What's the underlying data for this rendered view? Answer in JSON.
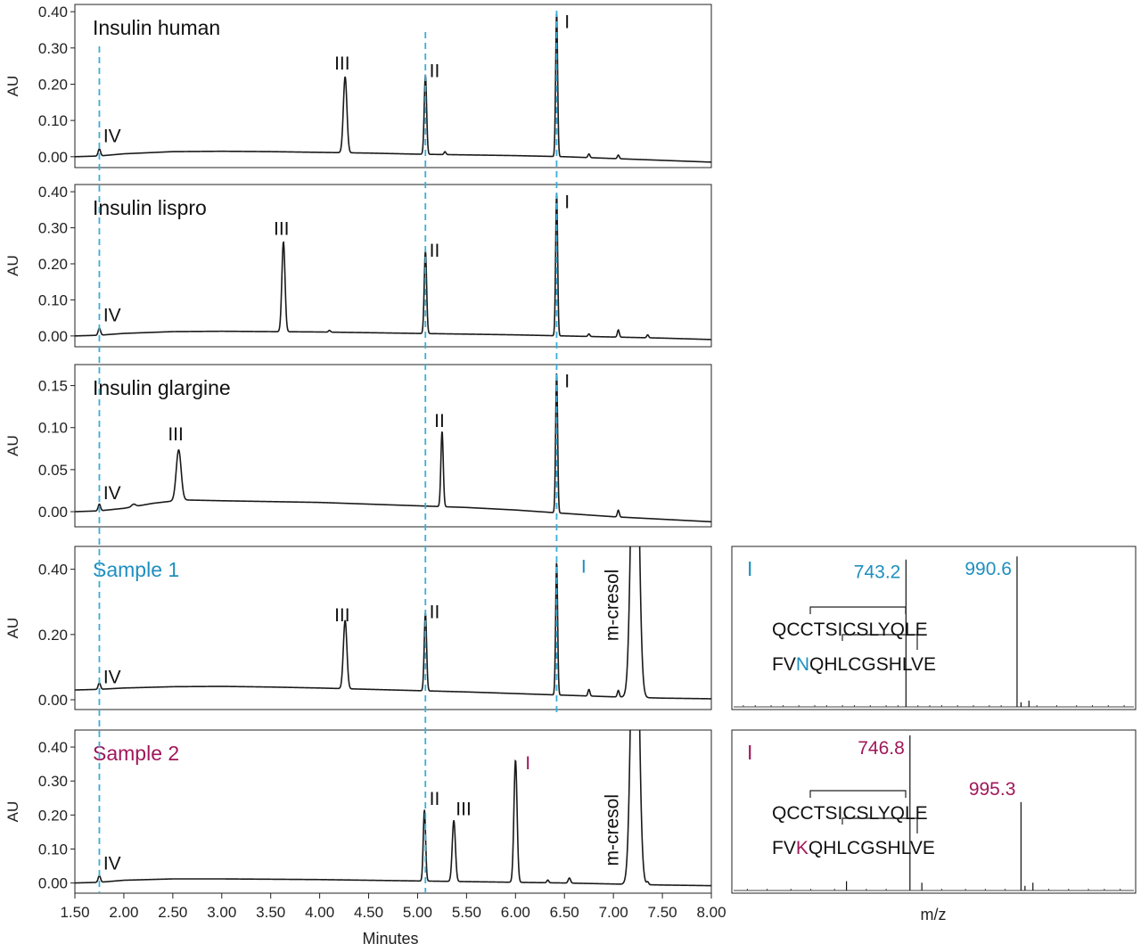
{
  "colors": {
    "sample1": "#1f8fbf",
    "sample2": "#a0185a",
    "guide": "#3aaed8",
    "trace": "#1a1a1a"
  },
  "x_axis": {
    "label": "Minutes",
    "range": [
      1.5,
      8.0
    ],
    "ticks": [
      "1.50",
      "2.00",
      "2.50",
      "3.00",
      "3.50",
      "4.00",
      "4.50",
      "5.00",
      "5.50",
      "6.00",
      "6.50",
      "7.00",
      "7.50",
      "8.00"
    ],
    "guides": [
      1.75,
      5.08,
      6.42
    ]
  },
  "ms_axis": {
    "label": "m/z"
  },
  "chart_data": [
    {
      "type": "line",
      "title": "Insulin human",
      "ylabel": "AU",
      "ylim": [
        -0.03,
        0.42
      ],
      "yticks": [
        "0.00",
        "0.10",
        "0.20",
        "0.30",
        "0.40"
      ],
      "yticks_num": [
        0,
        0.1,
        0.2,
        0.3,
        0.4
      ],
      "baseline": [
        [
          1.5,
          0.0
        ],
        [
          1.75,
          0.002
        ],
        [
          2.0,
          0.008
        ],
        [
          2.5,
          0.014
        ],
        [
          3.0,
          0.015
        ],
        [
          3.5,
          0.014
        ],
        [
          4.0,
          0.012
        ],
        [
          4.5,
          0.01
        ],
        [
          5.0,
          0.007
        ],
        [
          5.5,
          0.005
        ],
        [
          6.0,
          0.003
        ],
        [
          6.5,
          0.0
        ],
        [
          7.0,
          -0.005
        ],
        [
          7.5,
          -0.01
        ],
        [
          8.0,
          -0.015
        ]
      ],
      "peaks": [
        {
          "x": 1.75,
          "h": 0.02,
          "w": 0.012
        },
        {
          "x": 4.26,
          "h": 0.21,
          "w": 0.018
        },
        {
          "x": 5.08,
          "h": 0.22,
          "w": 0.012
        },
        {
          "x": 5.28,
          "h": 0.008,
          "w": 0.01
        },
        {
          "x": 6.42,
          "h": 0.4,
          "w": 0.01
        },
        {
          "x": 6.75,
          "h": 0.01,
          "w": 0.01
        },
        {
          "x": 7.05,
          "h": 0.01,
          "w": 0.01
        }
      ],
      "peak_labels": [
        {
          "text": "IV",
          "x": 1.79,
          "y": 0.04
        },
        {
          "text": "III",
          "x": 4.15,
          "y": 0.24
        },
        {
          "text": "II",
          "x": 5.12,
          "y": 0.22
        },
        {
          "text": "I",
          "x": 6.5,
          "y": 0.355
        }
      ]
    },
    {
      "type": "line",
      "title": "Insulin lispro",
      "ylabel": "AU",
      "ylim": [
        -0.03,
        0.42
      ],
      "yticks": [
        "0.00",
        "0.10",
        "0.20",
        "0.30",
        "0.40"
      ],
      "yticks_num": [
        0,
        0.1,
        0.2,
        0.3,
        0.4
      ],
      "baseline": [
        [
          1.5,
          0.0
        ],
        [
          1.75,
          0.002
        ],
        [
          2.0,
          0.007
        ],
        [
          2.5,
          0.012
        ],
        [
          3.0,
          0.013
        ],
        [
          3.5,
          0.012
        ],
        [
          4.0,
          0.011
        ],
        [
          4.5,
          0.009
        ],
        [
          5.0,
          0.007
        ],
        [
          5.5,
          0.005
        ],
        [
          6.0,
          0.003
        ],
        [
          6.5,
          0.0
        ],
        [
          7.0,
          -0.003
        ],
        [
          7.5,
          -0.006
        ],
        [
          8.0,
          -0.01
        ]
      ],
      "peaks": [
        {
          "x": 1.75,
          "h": 0.02,
          "w": 0.012
        },
        {
          "x": 3.63,
          "h": 0.25,
          "w": 0.016
        },
        {
          "x": 4.1,
          "h": 0.005,
          "w": 0.01
        },
        {
          "x": 5.08,
          "h": 0.23,
          "w": 0.012
        },
        {
          "x": 6.42,
          "h": 0.4,
          "w": 0.01
        },
        {
          "x": 6.75,
          "h": 0.007,
          "w": 0.01
        },
        {
          "x": 7.05,
          "h": 0.02,
          "w": 0.01
        },
        {
          "x": 7.35,
          "h": 0.008,
          "w": 0.01
        }
      ],
      "peak_labels": [
        {
          "text": "IV",
          "x": 1.79,
          "y": 0.04
        },
        {
          "text": "III",
          "x": 3.53,
          "y": 0.28
        },
        {
          "text": "II",
          "x": 5.12,
          "y": 0.22
        },
        {
          "text": "I",
          "x": 6.5,
          "y": 0.355
        }
      ]
    },
    {
      "type": "line",
      "title": "Insulin glargine",
      "ylabel": "AU",
      "ylim": [
        -0.018,
        0.175
      ],
      "yticks": [
        "0.00",
        "0.05",
        "0.10",
        "0.15"
      ],
      "yticks_num": [
        0,
        0.05,
        0.1,
        0.15
      ],
      "baseline": [
        [
          1.5,
          0.0
        ],
        [
          1.75,
          0.001
        ],
        [
          2.0,
          0.004
        ],
        [
          2.3,
          0.01
        ],
        [
          2.6,
          0.014
        ],
        [
          3.0,
          0.013
        ],
        [
          3.5,
          0.012
        ],
        [
          4.0,
          0.011
        ],
        [
          4.5,
          0.009
        ],
        [
          5.0,
          0.007
        ],
        [
          5.5,
          0.005
        ],
        [
          6.0,
          0.002
        ],
        [
          6.5,
          -0.002
        ],
        [
          7.0,
          -0.006
        ],
        [
          7.5,
          -0.009
        ],
        [
          8.0,
          -0.012
        ]
      ],
      "peaks": [
        {
          "x": 1.75,
          "h": 0.008,
          "w": 0.012
        },
        {
          "x": 2.1,
          "h": 0.003,
          "w": 0.02
        },
        {
          "x": 2.56,
          "h": 0.06,
          "w": 0.025
        },
        {
          "x": 5.25,
          "h": 0.09,
          "w": 0.012
        },
        {
          "x": 6.42,
          "h": 0.168,
          "w": 0.01
        },
        {
          "x": 7.05,
          "h": 0.008,
          "w": 0.01
        }
      ],
      "peak_labels": [
        {
          "text": "IV",
          "x": 1.79,
          "y": 0.015
        },
        {
          "text": "III",
          "x": 2.45,
          "y": 0.085
        },
        {
          "text": "II",
          "x": 5.17,
          "y": 0.101
        },
        {
          "text": "I",
          "x": 6.5,
          "y": 0.148
        }
      ]
    },
    {
      "type": "line",
      "title": "Sample 1",
      "title_color": "#1f8fbf",
      "ylabel": "AU",
      "ylim": [
        -0.03,
        0.47
      ],
      "yticks": [
        "0.00",
        "0.20",
        "0.40"
      ],
      "yticks_num": [
        0,
        0.2,
        0.4
      ],
      "baseline": [
        [
          1.5,
          0.03
        ],
        [
          1.75,
          0.032
        ],
        [
          2.0,
          0.036
        ],
        [
          2.5,
          0.04
        ],
        [
          3.0,
          0.041
        ],
        [
          3.5,
          0.039
        ],
        [
          4.0,
          0.036
        ],
        [
          4.5,
          0.032
        ],
        [
          5.0,
          0.028
        ],
        [
          5.5,
          0.024
        ],
        [
          6.0,
          0.019
        ],
        [
          6.5,
          0.014
        ],
        [
          7.0,
          0.009
        ],
        [
          7.5,
          0.005
        ],
        [
          8.0,
          0.003
        ]
      ],
      "peaks": [
        {
          "x": 1.75,
          "h": 0.02,
          "w": 0.012
        },
        {
          "x": 4.26,
          "h": 0.21,
          "w": 0.018
        },
        {
          "x": 5.08,
          "h": 0.24,
          "w": 0.012
        },
        {
          "x": 6.42,
          "h": 0.41,
          "w": 0.01
        },
        {
          "x": 6.75,
          "h": 0.02,
          "w": 0.01
        },
        {
          "x": 7.05,
          "h": 0.02,
          "w": 0.01
        },
        {
          "x": 7.22,
          "h": 1.2,
          "w": 0.035
        }
      ],
      "peak_labels": [
        {
          "text": "IV",
          "x": 1.79,
          "y": 0.05
        },
        {
          "text": "III",
          "x": 4.15,
          "y": 0.24
        },
        {
          "text": "II",
          "x": 5.12,
          "y": 0.25
        },
        {
          "text": "I",
          "x": 6.67,
          "y": 0.39,
          "color": "#1f8fbf"
        },
        {
          "text": "m-cresol",
          "x": 7.05,
          "y": 0.18,
          "rotate": true
        }
      ]
    },
    {
      "type": "line",
      "title": "Sample 2",
      "title_color": "#a0185a",
      "ylabel": "AU",
      "ylim": [
        -0.03,
        0.45
      ],
      "yticks": [
        "0.00",
        "0.10",
        "0.20",
        "0.30",
        "0.40"
      ],
      "yticks_num": [
        0,
        0.1,
        0.2,
        0.3,
        0.4
      ],
      "baseline": [
        [
          1.5,
          0.0
        ],
        [
          1.75,
          0.002
        ],
        [
          2.0,
          0.008
        ],
        [
          2.5,
          0.012
        ],
        [
          3.0,
          0.012
        ],
        [
          3.5,
          0.011
        ],
        [
          4.0,
          0.01
        ],
        [
          4.5,
          0.008
        ],
        [
          5.0,
          0.006
        ],
        [
          5.5,
          0.004
        ],
        [
          6.0,
          0.002
        ],
        [
          6.5,
          0.0
        ],
        [
          7.0,
          -0.003
        ],
        [
          7.5,
          -0.006
        ],
        [
          8.0,
          -0.008
        ]
      ],
      "peaks": [
        {
          "x": 1.75,
          "h": 0.02,
          "w": 0.012
        },
        {
          "x": 5.07,
          "h": 0.21,
          "w": 0.012
        },
        {
          "x": 5.37,
          "h": 0.18,
          "w": 0.016
        },
        {
          "x": 6.0,
          "h": 0.36,
          "w": 0.016
        },
        {
          "x": 6.33,
          "h": 0.008,
          "w": 0.01
        },
        {
          "x": 6.55,
          "h": 0.015,
          "w": 0.012
        },
        {
          "x": 7.22,
          "h": 1.2,
          "w": 0.035
        },
        {
          "x": 7.35,
          "h": 0.008,
          "w": 0.01
        }
      ],
      "peak_labels": [
        {
          "text": "IV",
          "x": 1.79,
          "y": 0.04
        },
        {
          "text": "II",
          "x": 5.12,
          "y": 0.23
        },
        {
          "text": "III",
          "x": 5.39,
          "y": 0.2
        },
        {
          "text": "I",
          "x": 6.1,
          "y": 0.335,
          "color": "#a0185a"
        },
        {
          "text": "m-cresol",
          "x": 7.05,
          "y": 0.05,
          "rotate": true
        }
      ]
    }
  ],
  "ms_panels": [
    {
      "label": "I",
      "color": "#1f8fbf",
      "xlim": [
        0,
        100
      ],
      "ylim": [
        0,
        100
      ],
      "sequence_a": "QCCTSICSLYQLE",
      "sequence_b_prefix": "FV",
      "sequence_b_residue": "N",
      "sequence_b_suffix": "QHLCGSHLVE",
      "peaks": [
        {
          "mz": 43,
          "i": 95,
          "label": "743.2"
        },
        {
          "mz": 71,
          "i": 97,
          "label": "990.6"
        },
        {
          "mz": 74,
          "i": 4
        },
        {
          "mz": 72,
          "i": 3
        }
      ],
      "noise": [
        2,
        5,
        9,
        12,
        16,
        20,
        23,
        27,
        30,
        34,
        38,
        41,
        46,
        49,
        52,
        56,
        60,
        64,
        67,
        76,
        81,
        86,
        90,
        94,
        98
      ]
    },
    {
      "label": "I",
      "color": "#a0185a",
      "xlim": [
        0,
        100
      ],
      "ylim": [
        0,
        100
      ],
      "sequence_a": "QCCTSICSLYQLE",
      "sequence_b_prefix": "FV",
      "sequence_b_residue": "K",
      "sequence_b_suffix": "QHLCGSHLVE",
      "peaks": [
        {
          "mz": 44,
          "i": 100,
          "label": "746.8"
        },
        {
          "mz": 72,
          "i": 57,
          "label": "995.3"
        },
        {
          "mz": 28,
          "i": 6
        },
        {
          "mz": 47,
          "i": 5
        },
        {
          "mz": 75,
          "i": 5
        },
        {
          "mz": 73,
          "i": 3
        }
      ],
      "noise": [
        3,
        8,
        14,
        19,
        25,
        33,
        38,
        52,
        58,
        63,
        68,
        79,
        84,
        89,
        93,
        97
      ]
    }
  ]
}
